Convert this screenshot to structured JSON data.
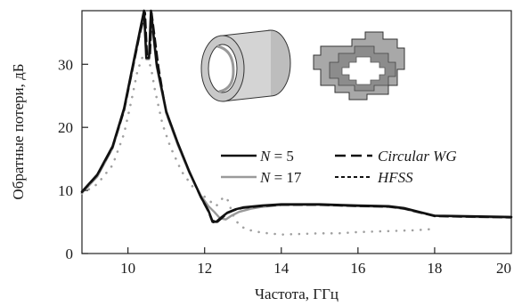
{
  "chart_data": {
    "type": "line",
    "title": "",
    "xlabel": "Частота, ГГц",
    "ylabel": "Обратные потери, дБ",
    "xlim": [
      8.8,
      20
    ],
    "ylim": [
      0,
      38.5
    ],
    "xticks": [
      "10",
      "12",
      "14",
      "16",
      "18",
      "20"
    ],
    "yticks": [
      "0",
      "10",
      "20",
      "30"
    ],
    "grid": false,
    "legend_placement": "right-middle",
    "series": [
      {
        "name": "N = 5",
        "legend_italic_part": "N",
        "legend_rest": " = 5",
        "color": "#111111",
        "style": "solid",
        "x": [
          8.8,
          9.2,
          9.6,
          9.9,
          10.1,
          10.3,
          10.42,
          10.48,
          10.55,
          10.6,
          10.75,
          11.0,
          11.3,
          11.6,
          11.9,
          12.1,
          12.2,
          12.3,
          12.45,
          12.6,
          12.8,
          13.0,
          13.5,
          14.0,
          15.0,
          16.0,
          16.8,
          17.2,
          17.6,
          18.0,
          19.0,
          20.0
        ],
        "y": [
          9.8,
          12.5,
          17.0,
          23.0,
          29.0,
          35.0,
          38.5,
          31.0,
          31.0,
          38.5,
          30.0,
          22.5,
          17.5,
          13.0,
          9.0,
          6.8,
          5.2,
          5.0,
          5.8,
          6.5,
          7.0,
          7.3,
          7.6,
          7.8,
          7.8,
          7.6,
          7.5,
          7.2,
          6.6,
          6.0,
          5.9,
          5.8
        ]
      },
      {
        "name": "N = 17",
        "legend_italic_part": "N",
        "legend_rest": " = 17",
        "color": "#9a9a9a",
        "style": "solid",
        "x": [
          8.8,
          9.2,
          9.6,
          9.9,
          10.1,
          10.3,
          10.42,
          10.48,
          10.55,
          10.6,
          10.75,
          11.0,
          11.3,
          11.6,
          11.9,
          12.1,
          12.25,
          12.4,
          12.55,
          12.7,
          12.9,
          13.2,
          13.5,
          14.0,
          15.0,
          16.0,
          16.8,
          17.2,
          17.6,
          18.0,
          19.0,
          20.0
        ],
        "y": [
          9.6,
          12.2,
          16.7,
          22.7,
          28.6,
          34.6,
          38.0,
          30.8,
          30.8,
          38.0,
          29.6,
          22.2,
          17.2,
          12.8,
          9.2,
          7.5,
          6.6,
          5.6,
          5.4,
          6.0,
          6.6,
          7.1,
          7.4,
          7.7,
          7.7,
          7.5,
          7.4,
          7.1,
          6.5,
          6.0,
          5.8,
          5.7
        ]
      },
      {
        "name": "Circular WG",
        "legend_italic_part": "Circular WG",
        "legend_rest": "",
        "color": "#111111",
        "style": "dash",
        "x": [
          8.8,
          9.2,
          9.6,
          9.9,
          10.1,
          10.3,
          10.45,
          10.5,
          10.58,
          10.62,
          10.8,
          11.0,
          11.3,
          11.6,
          11.9,
          12.1,
          12.2,
          12.3,
          12.45,
          12.6,
          12.8,
          13.0,
          13.5,
          14.0,
          15.0,
          16.0,
          16.8,
          17.2,
          17.6,
          18.0,
          19.0,
          20.0
        ],
        "y": [
          9.7,
          12.4,
          16.8,
          22.6,
          28.5,
          34.5,
          38.2,
          31.5,
          31.5,
          38.2,
          29.5,
          22.3,
          17.4,
          12.9,
          8.9,
          6.6,
          5.0,
          4.8,
          5.6,
          6.4,
          6.9,
          7.2,
          7.5,
          7.7,
          7.7,
          7.5,
          7.4,
          7.1,
          6.5,
          5.9,
          5.8,
          5.7
        ]
      },
      {
        "name": "HFSS",
        "legend_italic_part": "HFSS",
        "legend_rest": "",
        "color": "#a0a0a0",
        "style": "dot",
        "x": [
          8.8,
          9.2,
          9.6,
          9.9,
          10.1,
          10.25,
          10.4,
          10.5,
          10.6,
          10.7,
          10.9,
          11.1,
          11.4,
          11.7,
          12.0,
          12.3,
          12.5,
          12.6,
          12.75,
          12.9,
          13.1,
          13.5,
          14.0,
          14.5,
          15.0,
          15.5,
          16.0,
          16.5,
          17.0,
          17.5,
          18.0
        ],
        "y": [
          9.5,
          11.0,
          14.0,
          19.0,
          24.5,
          29.0,
          31.5,
          31.0,
          29.5,
          26.0,
          20.5,
          17.0,
          13.0,
          10.5,
          9.0,
          7.5,
          9.0,
          8.5,
          6.0,
          4.5,
          3.8,
          3.3,
          3.0,
          3.1,
          3.2,
          3.2,
          3.4,
          3.5,
          3.6,
          3.7,
          3.9
        ]
      }
    ]
  },
  "legend": {
    "equals_five": " = 5",
    "equals_seventeen": " = 17"
  }
}
